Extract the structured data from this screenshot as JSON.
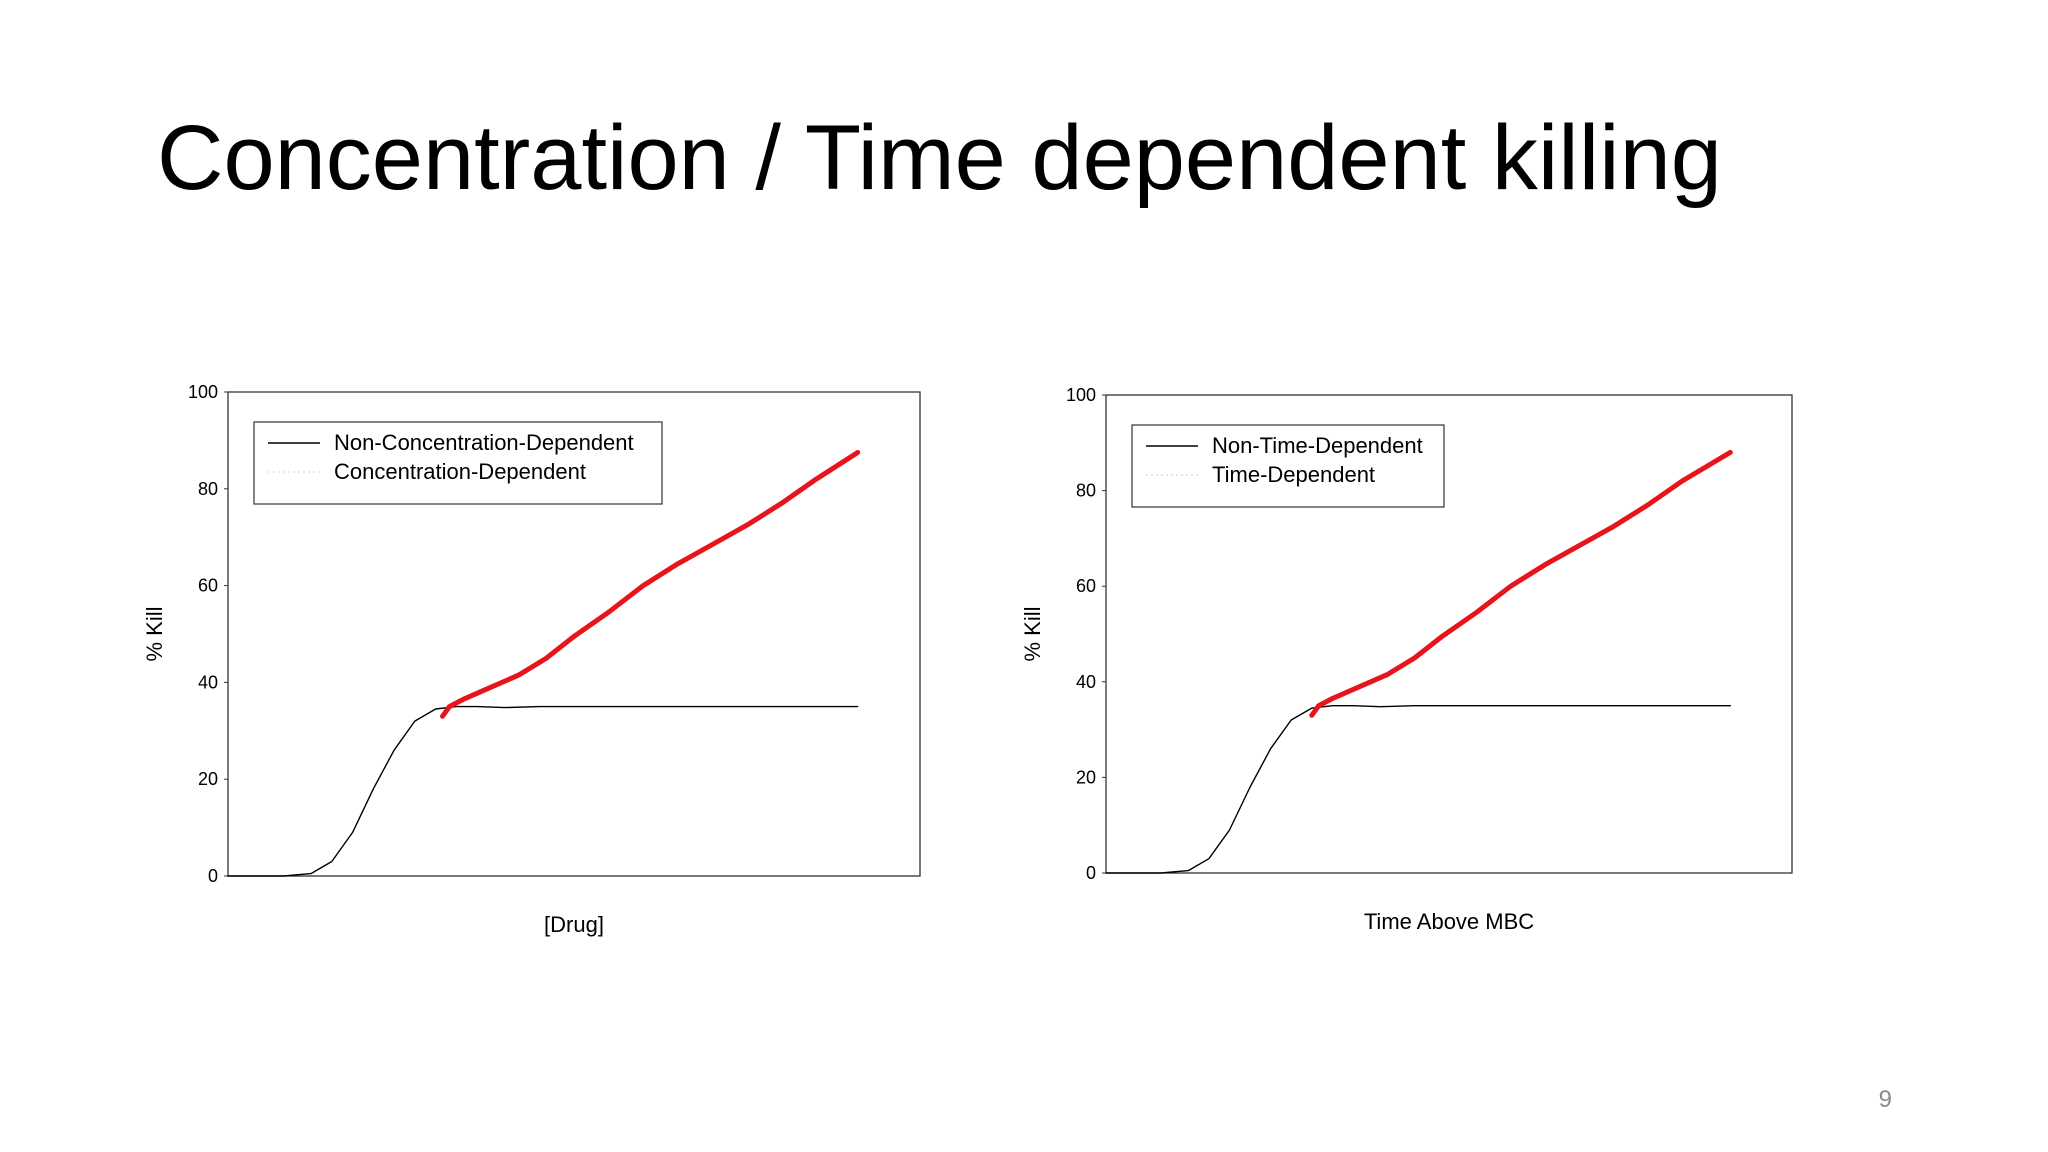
{
  "slide": {
    "title": "Concentration / Time dependent killing",
    "page_number": "9"
  },
  "colors": {
    "plateau_line": "#000000",
    "dependent_line": "#e8141b",
    "frame": "#333333"
  },
  "chart_data": [
    {
      "type": "line",
      "title": "",
      "xlabel": "[Drug]",
      "ylabel": "% Kill",
      "ylim": [
        0,
        100
      ],
      "xlim": [
        0,
        100
      ],
      "yticks": [
        "0",
        "20",
        "40",
        "60",
        "80",
        "100"
      ],
      "grid": false,
      "legend_position": "top-left",
      "series": [
        {
          "name": "Non-Concentration-Dependent",
          "style": "solid-thin-black",
          "x": [
            0,
            8,
            12,
            15,
            18,
            21,
            24,
            27,
            30,
            33,
            36,
            40,
            45,
            50,
            60,
            70,
            80,
            91
          ],
          "y": [
            0,
            0,
            0.5,
            3,
            9,
            18,
            26,
            32,
            34.5,
            35,
            35,
            34.8,
            35,
            35,
            35,
            35,
            35,
            35
          ]
        },
        {
          "name": "Concentration-Dependent",
          "style": "thick-red",
          "x": [
            31,
            32,
            34,
            38,
            42,
            46,
            50,
            55,
            60,
            65,
            70,
            75,
            80,
            85,
            91
          ],
          "y": [
            33,
            35,
            36.5,
            39,
            41.5,
            45,
            49.5,
            54.5,
            60,
            64.5,
            68.5,
            72.5,
            77,
            82,
            87.5
          ]
        }
      ]
    },
    {
      "type": "line",
      "title": "",
      "xlabel": "Time Above MBC",
      "ylabel": "% Kill",
      "ylim": [
        0,
        100
      ],
      "xlim": [
        0,
        100
      ],
      "yticks": [
        "0",
        "20",
        "40",
        "60",
        "80",
        "100"
      ],
      "grid": false,
      "legend_position": "top-left",
      "series": [
        {
          "name": "Non-Time-Dependent",
          "style": "solid-thin-black",
          "x": [
            0,
            8,
            12,
            15,
            18,
            21,
            24,
            27,
            30,
            33,
            36,
            40,
            45,
            50,
            60,
            70,
            80,
            91
          ],
          "y": [
            0,
            0,
            0.5,
            3,
            9,
            18,
            26,
            32,
            34.5,
            35,
            35,
            34.8,
            35,
            35,
            35,
            35,
            35,
            35
          ]
        },
        {
          "name": "Time-Dependent",
          "style": "thick-red",
          "x": [
            30,
            31,
            33,
            37,
            41,
            45,
            49,
            54,
            59,
            64,
            69,
            74,
            79,
            84,
            91
          ],
          "y": [
            33,
            35,
            36.5,
            39,
            41.5,
            45,
            49.5,
            54.5,
            60,
            64.5,
            68.5,
            72.5,
            77,
            82,
            88
          ]
        }
      ]
    }
  ]
}
